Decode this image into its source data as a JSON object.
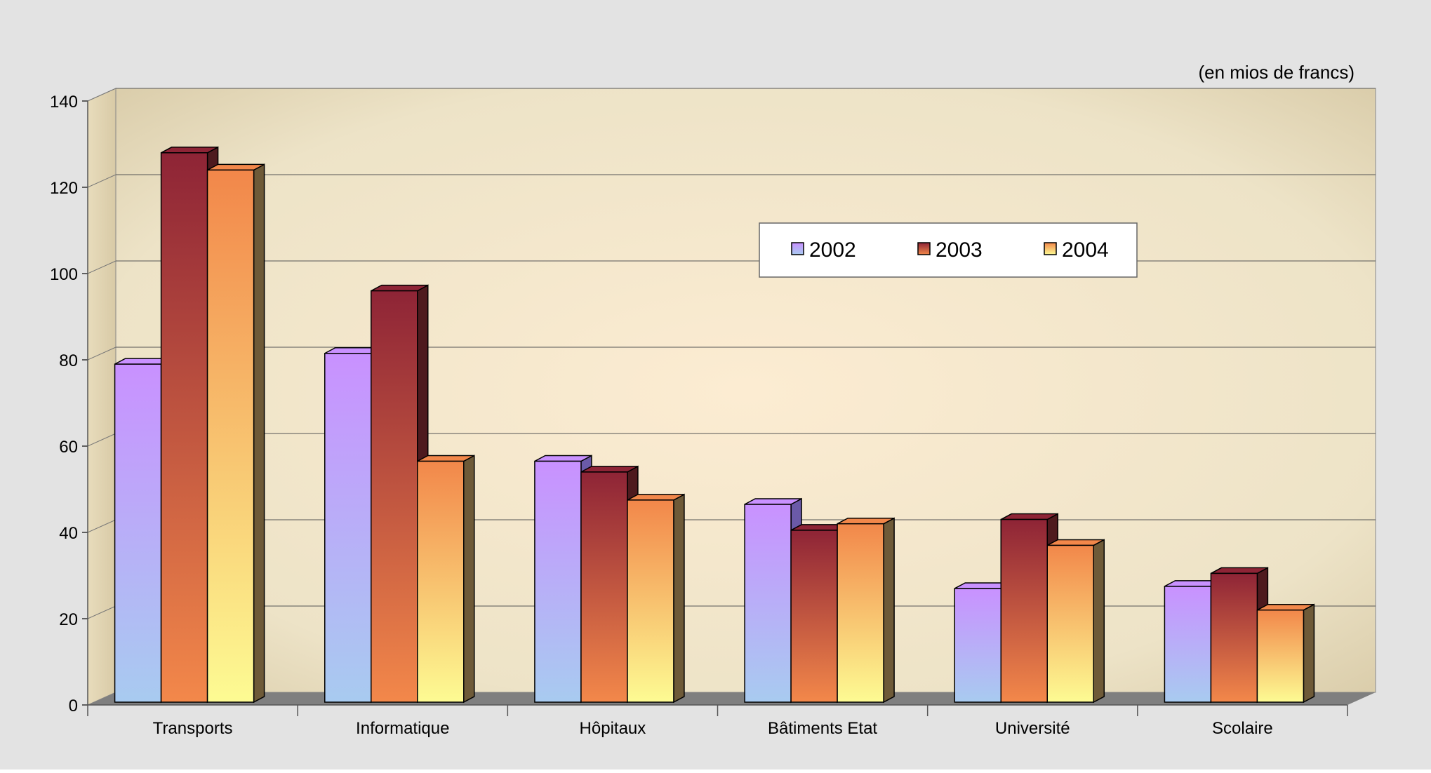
{
  "chart_data": {
    "type": "bar",
    "unit_note": "(en mios de francs)",
    "categories": [
      "Transports",
      "Informatique",
      "Hôpitaux",
      "Bâtiments Etat",
      "Université",
      "Scolaire"
    ],
    "series": [
      {
        "name": "2002",
        "values": [
          79,
          81.5,
          56.5,
          46.5,
          27,
          27.5
        ]
      },
      {
        "name": "2003",
        "values": [
          128,
          96,
          54,
          40.5,
          43,
          30.5
        ]
      },
      {
        "name": "2004",
        "values": [
          124,
          56.5,
          47.5,
          42,
          37,
          22
        ]
      }
    ],
    "ylim": [
      0,
      140
    ],
    "yticks": [
      0,
      20,
      40,
      60,
      80,
      100,
      120,
      140
    ],
    "legend_position": "top-right",
    "grid": true,
    "colors": {
      "outer_background": "#e3e3e3",
      "floor": "#7f7f7f",
      "2002": {
        "top": "#c991ff",
        "bottom": "#a8cbf0",
        "side": "#6b5aa8"
      },
      "2003": {
        "top": "#8e2436",
        "bottom": "#f3884a",
        "side": "#4e1a1e"
      },
      "2004": {
        "top": "#f2874a",
        "bottom": "#fdfb93",
        "side": "#6e5a38"
      }
    }
  }
}
